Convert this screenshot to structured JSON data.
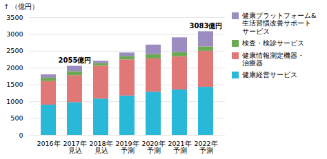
{
  "chart_data": {
    "type": "bar",
    "stacked": true,
    "categories": [
      "2016年",
      "2017年\n見込",
      "2018年\n見込",
      "2019年\n予測",
      "2020年\n予測",
      "2021年\n予測",
      "2022年\n予測"
    ],
    "series": [
      {
        "name": "健康経営サービス",
        "color": "#29b8d8",
        "values": [
          900,
          975,
          1080,
          1170,
          1285,
          1350,
          1430
        ]
      },
      {
        "name": "健康情報測定機器・\n治療器",
        "color": "#e07878",
        "values": [
          700,
          800,
          980,
          1075,
          990,
          990,
          1070
        ]
      },
      {
        "name": "検査・検診サービス",
        "color": "#6aaa50",
        "values": [
          100,
          120,
          75,
          90,
          130,
          120,
          130
        ]
      },
      {
        "name": "健康プラットフォーム&\n生活習慣改善サポート\nサービス",
        "color": "#9b8dc0",
        "values": [
          100,
          160,
          70,
          115,
          280,
          440,
          453
        ]
      }
    ],
    "annotations": [
      {
        "text": "2055億円",
        "x": "2017年\n見込",
        "y": 2055
      },
      {
        "text": "3083億円",
        "x": "2022年\n予測",
        "y": 3083
      }
    ],
    "ylabel": "（億円）",
    "ylim": [
      0,
      3500
    ],
    "yticks": [
      0,
      500,
      1000,
      1500,
      2000,
      2500,
      3000,
      3500
    ],
    "grid": true,
    "legend": "right"
  }
}
